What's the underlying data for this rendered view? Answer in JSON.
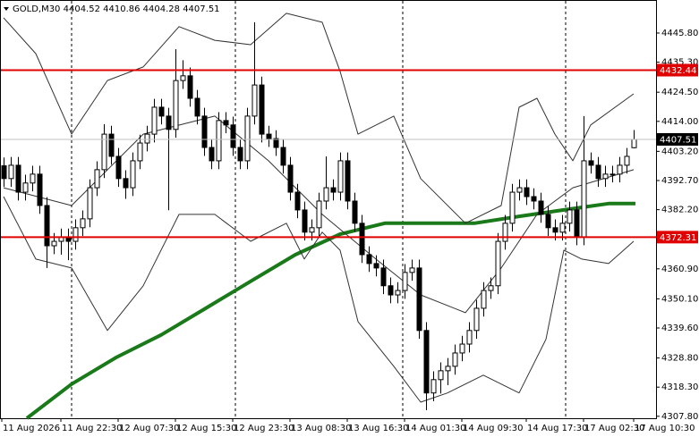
{
  "chart_data": {
    "type": "candlestick",
    "title": "GOLD,M30  4404.52 4410.86 4404.28 4407.51",
    "categories": [
      "11 Aug 2026",
      null,
      null,
      null,
      null,
      null,
      null,
      null,
      "11 Aug 22:30",
      null,
      null,
      null,
      null,
      null,
      null,
      null,
      "12 Aug 07:30",
      null,
      null,
      null,
      null,
      null,
      null,
      null,
      "12 Aug 15:30",
      null,
      null,
      null,
      null,
      null,
      null,
      null,
      "12 Aug 23:30",
      null,
      null,
      null,
      null,
      null,
      null,
      null,
      "13 Aug 08:30",
      null,
      null,
      null,
      null,
      null,
      null,
      null,
      "13 Aug 16:30",
      null,
      null,
      null,
      null,
      null,
      null,
      null,
      "14 Aug 01:30",
      null,
      null,
      null,
      null,
      null,
      null,
      null,
      "14 Aug 09:30",
      null,
      null,
      null,
      null,
      null,
      null,
      null,
      null,
      "14 Aug 17:30",
      null,
      null,
      null,
      null,
      null,
      null,
      null,
      "17 Aug 02:30",
      null,
      null,
      null,
      null,
      null,
      null,
      "17 Aug 10:30"
    ],
    "open": [
      4398.0,
      4393.4,
      4398.2,
      4388.5,
      4391.8,
      4395.0,
      4383.7,
      4369.2,
      4370.8,
      4372.4,
      4370.8,
      4375.7,
      4378.9,
      4390.1,
      4396.6,
      4409.4,
      4401.4,
      4393.4,
      4390.1,
      4399.8,
      4406.2,
      4409.4,
      4419.1,
      4415.9,
      4411.1,
      4428.7,
      4430.4,
      4422.3,
      4415.9,
      4404.6,
      4399.8,
      4414.3,
      4412.7,
      4404.6,
      4399.8,
      4415.9,
      4427.1,
      4409.4,
      4407.8,
      4404.6,
      4398.2,
      4388.5,
      4382.1,
      4374.1,
      4375.7,
      4385.3,
      4390.1,
      4388.5,
      4399.8,
      4385.3,
      4377.3,
      4366.0,
      4362.8,
      4361.2,
      4354.8,
      4351.5,
      4353.1,
      4359.6,
      4361.2,
      4338.7,
      4316.2,
      4321.0,
      4324.2,
      4325.8,
      4330.6,
      4333.8,
      4338.7,
      4346.7,
      4353.1,
      4354.8,
      4370.8,
      4377.3,
      4388.5,
      4390.1,
      4386.9,
      4385.3,
      4380.5,
      4375.7,
      4374.1,
      4377.3,
      4382.1,
      4372.4,
      4399.8,
      4398.2,
      4393.4,
      4395.0,
      4395.0,
      4398.2,
      4404.52
    ],
    "high": [
      4401.0,
      4401.2,
      4401.2,
      4394.8,
      4398.0,
      4398.0,
      4386.7,
      4373.8,
      4375.4,
      4375.4,
      4378.7,
      4381.9,
      4393.1,
      4399.6,
      4413.0,
      4412.4,
      4404.4,
      4396.4,
      4402.8,
      4409.2,
      4412.4,
      4422.1,
      4422.1,
      4418.9,
      4440.0,
      4436.0,
      4433.4,
      4425.3,
      4418.9,
      4407.6,
      4417.3,
      4417.3,
      4415.7,
      4407.6,
      4418.9,
      4449.7,
      4430.1,
      4412.4,
      4410.8,
      4407.6,
      4401.2,
      4391.5,
      4385.1,
      4378.7,
      4388.3,
      4401.4,
      4393.1,
      4402.8,
      4402.8,
      4388.3,
      4380.3,
      4369.0,
      4365.8,
      4364.2,
      4357.8,
      4356.1,
      4362.6,
      4364.2,
      4364.2,
      4341.7,
      4324.0,
      4327.2,
      4328.8,
      4333.6,
      4336.8,
      4341.7,
      4349.7,
      4356.1,
      4357.8,
      4373.8,
      4380.3,
      4391.5,
      4393.1,
      4393.1,
      4389.9,
      4388.3,
      4383.5,
      4378.7,
      4380.3,
      4385.1,
      4385.1,
      4415.9,
      4402.8,
      4401.2,
      4398.0,
      4398.0,
      4401.2,
      4404.4,
      4410.86
    ],
    "low": [
      4390.4,
      4390.4,
      4385.5,
      4385.5,
      4388.8,
      4380.7,
      4361.2,
      4366.2,
      4366.0,
      4364.0,
      4367.8,
      4372.7,
      4375.9,
      4387.1,
      4393.6,
      4398.4,
      4390.4,
      4386.1,
      4387.1,
      4396.8,
      4403.2,
      4406.4,
      4412.9,
      4382.0,
      4408.1,
      4425.7,
      4419.3,
      4412.9,
      4401.6,
      4396.8,
      4396.8,
      4409.7,
      4401.6,
      4396.8,
      4396.8,
      4412.9,
      4406.4,
      4404.8,
      4401.6,
      4395.2,
      4385.5,
      4379.1,
      4371.1,
      4371.1,
      4372.7,
      4382.3,
      4385.5,
      4385.5,
      4382.3,
      4374.3,
      4363.0,
      4359.8,
      4358.2,
      4351.8,
      4348.5,
      4348.5,
      4350.1,
      4356.6,
      4335.7,
      4310.0,
      4313.2,
      4316.0,
      4319.0,
      4322.8,
      4327.6,
      4330.8,
      4335.7,
      4343.7,
      4350.1,
      4351.8,
      4367.8,
      4374.3,
      4385.5,
      4383.9,
      4382.3,
      4377.5,
      4372.7,
      4371.1,
      4371.1,
      4374.3,
      4369.4,
      4369.4,
      4395.2,
      4390.4,
      4390.4,
      4392.0,
      4392.0,
      4395.2,
      4404.28
    ],
    "close": [
      4393.4,
      4398.2,
      4388.5,
      4391.8,
      4395.0,
      4383.7,
      4369.2,
      4370.8,
      4372.4,
      4370.8,
      4375.7,
      4378.9,
      4390.1,
      4396.6,
      4409.4,
      4401.4,
      4393.4,
      4390.1,
      4399.8,
      4406.2,
      4409.4,
      4419.1,
      4415.9,
      4411.1,
      4428.7,
      4430.4,
      4422.3,
      4415.9,
      4404.6,
      4399.8,
      4414.3,
      4412.7,
      4404.6,
      4399.8,
      4415.9,
      4427.1,
      4409.4,
      4407.8,
      4404.6,
      4398.2,
      4388.5,
      4382.1,
      4374.1,
      4375.7,
      4385.3,
      4390.1,
      4388.5,
      4399.8,
      4385.3,
      4377.3,
      4366.0,
      4362.8,
      4361.2,
      4354.8,
      4351.5,
      4353.1,
      4359.6,
      4361.2,
      4338.7,
      4316.2,
      4321.0,
      4324.2,
      4325.8,
      4330.6,
      4333.8,
      4338.7,
      4346.7,
      4353.1,
      4354.8,
      4370.8,
      4377.3,
      4388.5,
      4390.1,
      4386.9,
      4385.3,
      4380.5,
      4375.7,
      4374.1,
      4377.3,
      4382.1,
      4372.4,
      4399.8,
      4398.2,
      4393.4,
      4395.0,
      4395.0,
      4398.2,
      4401.4,
      4407.51
    ],
    "up_color": "#ffffff",
    "down_color": "#000000",
    "lines": [
      {
        "color": "#1a7a1a",
        "width": 4,
        "x": [
          3.25,
          9.5,
          15.75,
          22,
          28.25,
          34.5,
          40.75,
          47,
          53.25,
          59.5,
          65.75,
          72,
          78.25,
          84.5,
          88.25
        ],
        "values": [
          4307.1,
          4319.4,
          4329.0,
          4337.1,
          4346.7,
          4356.4,
          4366.0,
          4373.4,
          4377.3,
          4377.3,
          4377.3,
          4379.8,
          4382.1,
          4384.4,
          4384.4
        ]
      },
      {
        "color": "#333333",
        "width": 1,
        "x": [
          0,
          4.5,
          9.5,
          14.5,
          19.5,
          24.5,
          29.5,
          34.5,
          39.5,
          44.5,
          47,
          49.5,
          54.5,
          58.25,
          64.5,
          69.5,
          72,
          74.5,
          77,
          79.5,
          82,
          88
        ],
        "values": [
          4451.3,
          4438.4,
          4409.4,
          4428.7,
          4433.6,
          4448.1,
          4443.2,
          4441.6,
          4452.9,
          4449.7,
          4432.0,
          4409.4,
          4415.9,
          4393.4,
          4377.3,
          4383.7,
          4419.1,
          4422.3,
          4409.4,
          4399.8,
          4412.7,
          4423.9
        ]
      },
      {
        "color": "#333333",
        "width": 1,
        "x": [
          0,
          9.5,
          19.5,
          29.5,
          37,
          44.5,
          52,
          58.25,
          64.5,
          69.5,
          74.5,
          79.5,
          88
        ],
        "values": [
          4390.1,
          4383.7,
          4409.4,
          4415.9,
          4399.8,
          4380.5,
          4364.4,
          4351.5,
          4345.1,
          4361.2,
          4380.5,
          4390.1,
          4396.6
        ]
      },
      {
        "color": "#333333",
        "width": 1,
        "x": [
          0,
          4.5,
          9.5,
          14.5,
          19.5,
          24.5,
          29.5,
          34.5,
          39.5,
          42,
          44.5,
          47,
          49.5,
          54.5,
          58.25,
          62,
          67,
          72,
          75.75,
          78.25,
          80.75,
          84.5,
          88
        ],
        "values": [
          4386.9,
          4364.4,
          4361.2,
          4338.7,
          4354.8,
          4380.5,
          4380.5,
          4370.8,
          4377.3,
          4364.4,
          4374.1,
          4367.6,
          4341.9,
          4325.8,
          4312.9,
          4316.2,
          4322.6,
          4316.2,
          4335.5,
          4367.6,
          4364.4,
          4362.8,
          4370.8
        ]
      }
    ],
    "levels": [
      {
        "value": 4432.44,
        "color": "#e00000"
      },
      {
        "value": 4372.31,
        "color": "#e00000"
      }
    ],
    "last_price": 4407.51,
    "ylim": [
      4307.1,
      4457.7
    ],
    "yticks": [
      {
        "value": 4445.8,
        "label": "4445.80"
      },
      {
        "value": 4435.3,
        "label": "4435.30"
      },
      {
        "value": 4424.5,
        "label": "4424.50"
      },
      {
        "value": 4414.0,
        "label": "4414.00"
      },
      {
        "value": 4403.2,
        "label": "4403.20"
      },
      {
        "value": 4392.7,
        "label": "4392.70"
      },
      {
        "value": 4382.2,
        "label": "4382.20"
      },
      {
        "value": 4371.4,
        "label": "4371.40"
      },
      {
        "value": 4360.9,
        "label": "4360.90"
      },
      {
        "value": 4350.1,
        "label": "4350.10"
      },
      {
        "value": 4339.6,
        "label": "4339.60"
      },
      {
        "value": 4328.8,
        "label": "4328.80"
      },
      {
        "value": 4318.3,
        "label": "4318.30"
      },
      {
        "value": 4307.8,
        "label": "4307.80"
      }
    ]
  }
}
